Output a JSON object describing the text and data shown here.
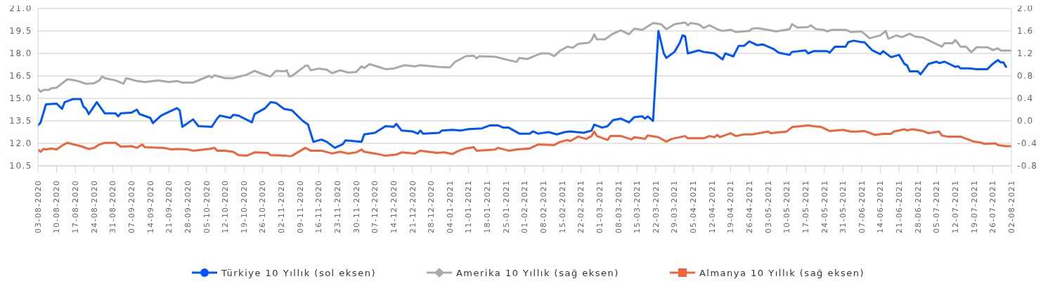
{
  "chart_data": {
    "type": "line",
    "grid": "y",
    "legend": "bottom",
    "xlim": [
      "2020-08-03",
      "2021-08-02"
    ],
    "xticks": [
      {
        "value": "2020-08-03",
        "label": "03-08-2020"
      },
      {
        "value": "2020-08-10",
        "label": "10-08-2020"
      },
      {
        "value": "2020-08-17",
        "label": "17-08-2020"
      },
      {
        "value": "2020-08-24",
        "label": "24-08-2020"
      },
      {
        "value": "2020-08-31",
        "label": "31-08-2020"
      },
      {
        "value": "2020-09-07",
        "label": "07-09-2020"
      },
      {
        "value": "2020-09-14",
        "label": "14-09-2020"
      },
      {
        "value": "2020-09-21",
        "label": "21-09-2020"
      },
      {
        "value": "2020-09-28",
        "label": "28-09-2020"
      },
      {
        "value": "2020-10-05",
        "label": "05-10-2020"
      },
      {
        "value": "2020-10-12",
        "label": "12-10-2020"
      },
      {
        "value": "2020-10-19",
        "label": "19-10-2020"
      },
      {
        "value": "2020-10-26",
        "label": "26-10-2020"
      },
      {
        "value": "2020-11-02",
        "label": "02-11-2020"
      },
      {
        "value": "2020-11-09",
        "label": "09-11-2020"
      },
      {
        "value": "2020-11-16",
        "label": "16-11-2020"
      },
      {
        "value": "2020-11-23",
        "label": "23-11-2020"
      },
      {
        "value": "2020-11-30",
        "label": "30-11-2020"
      },
      {
        "value": "2020-12-07",
        "label": "07-12-2020"
      },
      {
        "value": "2020-12-14",
        "label": "14-12-2020"
      },
      {
        "value": "2020-12-21",
        "label": "21-12-2020"
      },
      {
        "value": "2020-12-28",
        "label": "28-12-2020"
      },
      {
        "value": "2021-01-04",
        "label": "04-01-2021"
      },
      {
        "value": "2021-01-11",
        "label": "11-01-2021"
      },
      {
        "value": "2021-01-18",
        "label": "18-01-2021"
      },
      {
        "value": "2021-01-25",
        "label": "25-01-2021"
      },
      {
        "value": "2021-02-01",
        "label": "01-02-2021"
      },
      {
        "value": "2021-02-08",
        "label": "08-02-2021"
      },
      {
        "value": "2021-02-15",
        "label": "15-02-2021"
      },
      {
        "value": "2021-02-22",
        "label": "22-02-2021"
      },
      {
        "value": "2021-03-01",
        "label": "01-03-2021"
      },
      {
        "value": "2021-03-08",
        "label": "08-03-2021"
      },
      {
        "value": "2021-03-15",
        "label": "15-03-2021"
      },
      {
        "value": "2021-03-22",
        "label": "22-03-2021"
      },
      {
        "value": "2021-03-29",
        "label": "29-03-2021"
      },
      {
        "value": "2021-04-05",
        "label": "05-04-2021"
      },
      {
        "value": "2021-04-12",
        "label": "12-04-2021"
      },
      {
        "value": "2021-04-19",
        "label": "19-04-2021"
      },
      {
        "value": "2021-04-26",
        "label": "26-04-2021"
      },
      {
        "value": "2021-05-03",
        "label": "03-05-2021"
      },
      {
        "value": "2021-05-10",
        "label": "10-05-2021"
      },
      {
        "value": "2021-05-17",
        "label": "17-05-2021"
      },
      {
        "value": "2021-05-24",
        "label": "24-05-2021"
      },
      {
        "value": "2021-05-31",
        "label": "31-05-2021"
      },
      {
        "value": "2021-06-07",
        "label": "07-06-2021"
      },
      {
        "value": "2021-06-14",
        "label": "14-06-2021"
      },
      {
        "value": "2021-06-21",
        "label": "21-06-2021"
      },
      {
        "value": "2021-06-28",
        "label": "28-06-2021"
      },
      {
        "value": "2021-07-05",
        "label": "05-07-2021"
      },
      {
        "value": "2021-07-12",
        "label": "12-07-2021"
      },
      {
        "value": "2021-07-19",
        "label": "19-07-2021"
      },
      {
        "value": "2021-07-26",
        "label": "26-07-2021"
      },
      {
        "value": "2021-08-02",
        "label": "02-08-2021"
      }
    ],
    "ylim": [
      10.5,
      21.0
    ],
    "yticks": [
      {
        "value": 10.5,
        "label": "10.5"
      },
      {
        "value": 12,
        "label": "12.0"
      },
      {
        "value": 13.5,
        "label": "13.5"
      },
      {
        "value": 15,
        "label": "15.0"
      },
      {
        "value": 16.5,
        "label": "16.5"
      },
      {
        "value": 18,
        "label": "18.0"
      },
      {
        "value": 19.5,
        "label": "19.5"
      },
      {
        "value": 21,
        "label": "21.0"
      }
    ],
    "y2lim": [
      -0.8,
      2.0
    ],
    "y2ticks": [
      {
        "value": -0.8,
        "label": "-0.8"
      },
      {
        "value": -0.4,
        "label": "-0.4"
      },
      {
        "value": 0,
        "label": "0.0"
      },
      {
        "value": 0.4,
        "label": "0.4"
      },
      {
        "value": 0.8,
        "label": "0.8"
      },
      {
        "value": 1.2,
        "label": "1.2"
      },
      {
        "value": 1.6,
        "label": "1.6"
      },
      {
        "value": 2,
        "label": "2.0"
      }
    ],
    "series": [
      {
        "name": "Türkiye 10 Yıllık (sol eksen)",
        "color": "#0055ff",
        "x": [
          "2020-08-03",
          "2020-08-04",
          "2020-08-06",
          "2020-08-10",
          "2020-08-12",
          "2020-08-13",
          "2020-08-16",
          "2020-08-19",
          "2020-08-20",
          "2020-08-21",
          "2020-08-22",
          "2020-08-25",
          "2020-08-28",
          "2020-09-01",
          "2020-09-02",
          "2020-09-03",
          "2020-09-07",
          "2020-09-09",
          "2020-09-10",
          "2020-09-14",
          "2020-09-15",
          "2020-09-18",
          "2020-09-21",
          "2020-09-24",
          "2020-09-25",
          "2020-09-26",
          "2020-09-30",
          "2020-10-02",
          "2020-10-07",
          "2020-10-09",
          "2020-10-10",
          "2020-10-14",
          "2020-10-15",
          "2020-10-17",
          "2020-10-22",
          "2020-10-23",
          "2020-10-27",
          "2020-10-29",
          "2020-10-31",
          "2020-11-03",
          "2020-11-06",
          "2020-11-10",
          "2020-11-12",
          "2020-11-14",
          "2020-11-17",
          "2020-11-19",
          "2020-11-22",
          "2020-11-25",
          "2020-11-26",
          "2020-11-29",
          "2020-12-02",
          "2020-12-03",
          "2020-12-07",
          "2020-12-11",
          "2020-12-14",
          "2020-12-15",
          "2020-12-17",
          "2020-12-21",
          "2020-12-23",
          "2020-12-24",
          "2020-12-25",
          "2020-12-31",
          "2021-01-01",
          "2021-01-05",
          "2021-01-08",
          "2021-01-11",
          "2021-01-16",
          "2021-01-19",
          "2021-01-22",
          "2021-01-24",
          "2021-01-26",
          "2021-01-30",
          "2021-02-03",
          "2021-02-04",
          "2021-02-06",
          "2021-02-10",
          "2021-02-13",
          "2021-02-16",
          "2021-02-18",
          "2021-02-23",
          "2021-02-26",
          "2021-02-27",
          "2021-03-02",
          "2021-03-04",
          "2021-03-06",
          "2021-03-09",
          "2021-03-12",
          "2021-03-14",
          "2021-03-17",
          "2021-03-18",
          "2021-03-19",
          "2021-03-21",
          "2021-03-23",
          "2021-03-25",
          "2021-03-26",
          "2021-03-29",
          "2021-03-31",
          "2021-04-01",
          "2021-04-02",
          "2021-04-03",
          "2021-04-07",
          "2021-04-09",
          "2021-04-13",
          "2021-04-16",
          "2021-04-17",
          "2021-04-20",
          "2021-04-22",
          "2021-04-24",
          "2021-04-26",
          "2021-04-29",
          "2021-05-01",
          "2021-05-05",
          "2021-05-07",
          "2021-05-11",
          "2021-05-12",
          "2021-05-17",
          "2021-05-18",
          "2021-05-20",
          "2021-05-25",
          "2021-05-26",
          "2021-05-28",
          "2021-06-01",
          "2021-06-02",
          "2021-06-04",
          "2021-06-07",
          "2021-06-08",
          "2021-06-11",
          "2021-06-14",
          "2021-06-15",
          "2021-06-18",
          "2021-06-21",
          "2021-06-23",
          "2021-06-24",
          "2021-06-25",
          "2021-06-28",
          "2021-06-29",
          "2021-07-02",
          "2021-07-05",
          "2021-07-06",
          "2021-07-08",
          "2021-07-12",
          "2021-07-13",
          "2021-07-14",
          "2021-07-17",
          "2021-07-20",
          "2021-07-24",
          "2021-07-26",
          "2021-07-28",
          "2021-07-29",
          "2021-07-30",
          "2021-07-31"
        ],
        "values": [
          13.2,
          13.4,
          14.6,
          14.65,
          14.3,
          14.75,
          14.95,
          14.95,
          14.45,
          14.3,
          13.95,
          14.75,
          14.0,
          14.0,
          13.8,
          14.0,
          14.05,
          14.25,
          13.95,
          13.7,
          13.35,
          13.85,
          14.1,
          14.35,
          14.2,
          13.1,
          13.6,
          13.15,
          13.1,
          13.65,
          13.85,
          13.7,
          13.9,
          13.85,
          13.4,
          13.95,
          14.35,
          14.75,
          14.7,
          14.3,
          14.2,
          13.5,
          13.25,
          12.1,
          12.25,
          12.1,
          11.7,
          11.95,
          12.2,
          12.15,
          12.1,
          12.6,
          12.7,
          13.15,
          13.1,
          13.3,
          12.85,
          12.8,
          12.65,
          12.85,
          12.65,
          12.7,
          12.85,
          12.9,
          12.85,
          12.95,
          13.0,
          13.2,
          13.2,
          13.05,
          13.05,
          12.65,
          12.65,
          12.8,
          12.65,
          12.75,
          12.6,
          12.75,
          12.8,
          12.7,
          12.85,
          13.25,
          13.05,
          13.15,
          13.55,
          13.65,
          13.4,
          13.75,
          13.8,
          13.65,
          13.8,
          13.5,
          19.5,
          18.0,
          17.7,
          18.1,
          18.7,
          19.2,
          19.15,
          18.0,
          18.2,
          18.1,
          18.0,
          17.6,
          18.0,
          17.8,
          18.5,
          18.5,
          18.8,
          18.55,
          18.6,
          18.3,
          18.05,
          17.9,
          18.1,
          18.2,
          18.0,
          18.15,
          18.15,
          18.05,
          18.45,
          18.45,
          18.75,
          18.85,
          18.75,
          18.75,
          18.2,
          17.95,
          18.15,
          17.75,
          17.9,
          17.3,
          17.2,
          16.8,
          16.8,
          16.6,
          17.3,
          17.45,
          17.35,
          17.45,
          17.1,
          17.15,
          17.0,
          17.0,
          16.95,
          16.95,
          17.3,
          17.55,
          17.4,
          17.4,
          17.1
        ]
      },
      {
        "name": "Amerika 10 Yıllık (sağ eksen)",
        "color": "#aaaaaa",
        "axis": "y2",
        "x": [
          "2020-08-03",
          "2020-08-04",
          "2020-08-05",
          "2020-08-07",
          "2020-08-08",
          "2020-08-10",
          "2020-08-14",
          "2020-08-17",
          "2020-08-19",
          "2020-08-21",
          "2020-08-24",
          "2020-08-26",
          "2020-08-27",
          "2020-08-28",
          "2020-09-01",
          "2020-09-04",
          "2020-09-05",
          "2020-09-09",
          "2020-09-12",
          "2020-09-17",
          "2020-09-21",
          "2020-09-24",
          "2020-09-26",
          "2020-09-30",
          "2020-10-01",
          "2020-10-06",
          "2020-10-07",
          "2020-10-08",
          "2020-10-12",
          "2020-10-15",
          "2020-10-20",
          "2020-10-23",
          "2020-10-25",
          "2020-10-28",
          "2020-10-29",
          "2020-10-31",
          "2020-11-03",
          "2020-11-04",
          "2020-11-05",
          "2020-11-06",
          "2020-11-11",
          "2020-11-12",
          "2020-11-13",
          "2020-11-16",
          "2020-11-19",
          "2020-11-21",
          "2020-11-24",
          "2020-11-27",
          "2020-11-30",
          "2020-12-02",
          "2020-12-03",
          "2020-12-05",
          "2020-12-09",
          "2020-12-11",
          "2020-12-14",
          "2020-12-18",
          "2020-12-22",
          "2020-12-24",
          "2020-12-31",
          "2021-01-04",
          "2021-01-06",
          "2021-01-10",
          "2021-01-13",
          "2021-01-14",
          "2021-01-15",
          "2021-01-21",
          "2021-01-26",
          "2021-01-29",
          "2021-01-30",
          "2021-02-02",
          "2021-02-05",
          "2021-02-07",
          "2021-02-10",
          "2021-02-12",
          "2021-02-14",
          "2021-02-17",
          "2021-02-19",
          "2021-02-21",
          "2021-02-25",
          "2021-02-26",
          "2021-02-27",
          "2021-02-28",
          "2021-03-03",
          "2021-03-06",
          "2021-03-09",
          "2021-03-12",
          "2021-03-14",
          "2021-03-17",
          "2021-03-21",
          "2021-03-24",
          "2021-03-26",
          "2021-03-29",
          "2021-04-02",
          "2021-04-03",
          "2021-04-04",
          "2021-04-07",
          "2021-04-09",
          "2021-04-11",
          "2021-04-12",
          "2021-04-14",
          "2021-04-16",
          "2021-04-19",
          "2021-04-21",
          "2021-04-26",
          "2021-04-27",
          "2021-04-29",
          "2021-05-03",
          "2021-05-06",
          "2021-05-11",
          "2021-05-12",
          "2021-05-14",
          "2021-05-18",
          "2021-05-19",
          "2021-05-21",
          "2021-05-24",
          "2021-05-25",
          "2021-05-27",
          "2021-06-01",
          "2021-06-03",
          "2021-06-07",
          "2021-06-10",
          "2021-06-14",
          "2021-06-16",
          "2021-06-17",
          "2021-06-20",
          "2021-06-22",
          "2021-06-25",
          "2021-06-27",
          "2021-06-30",
          "2021-07-07",
          "2021-07-08",
          "2021-07-11",
          "2021-07-12",
          "2021-07-14",
          "2021-07-16",
          "2021-07-18",
          "2021-07-20",
          "2021-07-24",
          "2021-07-26",
          "2021-07-28",
          "2021-07-29",
          "2021-08-02"
        ],
        "values": [
          0.57,
          0.52,
          0.55,
          0.55,
          0.58,
          0.59,
          0.74,
          0.72,
          0.69,
          0.66,
          0.67,
          0.72,
          0.79,
          0.76,
          0.72,
          0.66,
          0.76,
          0.71,
          0.69,
          0.72,
          0.69,
          0.71,
          0.68,
          0.68,
          0.7,
          0.8,
          0.77,
          0.81,
          0.76,
          0.76,
          0.82,
          0.89,
          0.85,
          0.8,
          0.79,
          0.89,
          0.88,
          0.9,
          0.79,
          0.8,
          0.98,
          0.98,
          0.9,
          0.93,
          0.91,
          0.85,
          0.9,
          0.86,
          0.87,
          0.97,
          0.94,
          1.01,
          0.95,
          0.92,
          0.93,
          0.99,
          0.97,
          0.99,
          0.96,
          0.95,
          1.05,
          1.15,
          1.16,
          1.11,
          1.15,
          1.14,
          1.08,
          1.05,
          1.12,
          1.1,
          1.16,
          1.2,
          1.2,
          1.15,
          1.24,
          1.32,
          1.3,
          1.37,
          1.39,
          1.44,
          1.54,
          1.45,
          1.45,
          1.55,
          1.61,
          1.54,
          1.64,
          1.62,
          1.74,
          1.72,
          1.63,
          1.72,
          1.75,
          1.7,
          1.74,
          1.72,
          1.65,
          1.7,
          1.68,
          1.63,
          1.6,
          1.62,
          1.58,
          1.6,
          1.64,
          1.65,
          1.62,
          1.59,
          1.63,
          1.72,
          1.66,
          1.67,
          1.7,
          1.63,
          1.62,
          1.59,
          1.62,
          1.62,
          1.58,
          1.59,
          1.47,
          1.52,
          1.6,
          1.46,
          1.52,
          1.49,
          1.55,
          1.5,
          1.48,
          1.32,
          1.38,
          1.38,
          1.44,
          1.32,
          1.32,
          1.22,
          1.31,
          1.31,
          1.26,
          1.29,
          1.25,
          1.25
        ]
      },
      {
        "name": "Almanya 10 Yıllık (sağ eksen)",
        "color": "#f0643c",
        "axis": "y2",
        "x": [
          "2020-08-03",
          "2020-08-04",
          "2020-08-05",
          "2020-08-06",
          "2020-08-08",
          "2020-08-10",
          "2020-08-12",
          "2020-08-14",
          "2020-08-19",
          "2020-08-22",
          "2020-08-24",
          "2020-08-26",
          "2020-08-28",
          "2020-09-01",
          "2020-09-03",
          "2020-09-07",
          "2020-09-09",
          "2020-09-11",
          "2020-09-12",
          "2020-09-19",
          "2020-09-22",
          "2020-09-24",
          "2020-09-28",
          "2020-09-30",
          "2020-10-06",
          "2020-10-08",
          "2020-10-09",
          "2020-10-12",
          "2020-10-15",
          "2020-10-17",
          "2020-10-20",
          "2020-10-23",
          "2020-10-28",
          "2020-10-29",
          "2020-11-04",
          "2020-11-05",
          "2020-11-06",
          "2020-11-11",
          "2020-11-13",
          "2020-11-17",
          "2020-11-21",
          "2020-11-24",
          "2020-11-27",
          "2020-11-30",
          "2020-12-02",
          "2020-12-03",
          "2020-12-07",
          "2020-12-11",
          "2020-12-15",
          "2020-12-17",
          "2020-12-22",
          "2020-12-24",
          "2020-12-30",
          "2021-01-02",
          "2021-01-05",
          "2021-01-07",
          "2021-01-10",
          "2021-01-13",
          "2021-01-14",
          "2021-01-21",
          "2021-01-22",
          "2021-01-26",
          "2021-01-29",
          "2021-02-03",
          "2021-02-06",
          "2021-02-12",
          "2021-02-14",
          "2021-02-17",
          "2021-02-18",
          "2021-02-21",
          "2021-02-24",
          "2021-02-26",
          "2021-02-27",
          "2021-02-28",
          "2021-03-04",
          "2021-03-05",
          "2021-03-09",
          "2021-03-13",
          "2021-03-14",
          "2021-03-18",
          "2021-03-19",
          "2021-03-23",
          "2021-03-26",
          "2021-03-28",
          "2021-04-02",
          "2021-04-03",
          "2021-04-09",
          "2021-04-11",
          "2021-04-13",
          "2021-04-14",
          "2021-04-15",
          "2021-04-19",
          "2021-04-21",
          "2021-04-24",
          "2021-04-27",
          "2021-05-03",
          "2021-05-04",
          "2021-05-10",
          "2021-05-12",
          "2021-05-18",
          "2021-05-21",
          "2021-05-23",
          "2021-05-26",
          "2021-05-31",
          "2021-06-03",
          "2021-06-05",
          "2021-06-08",
          "2021-06-12",
          "2021-06-15",
          "2021-06-18",
          "2021-06-19",
          "2021-06-23",
          "2021-06-24",
          "2021-06-26",
          "2021-06-30",
          "2021-07-02",
          "2021-07-06",
          "2021-07-07",
          "2021-07-09",
          "2021-07-14",
          "2021-07-19",
          "2021-07-21",
          "2021-07-23",
          "2021-07-27",
          "2021-07-28",
          "2021-07-31",
          "2021-08-02"
        ],
        "values": [
          -0.51,
          -0.55,
          -0.5,
          -0.51,
          -0.49,
          -0.51,
          -0.44,
          -0.39,
          -0.45,
          -0.5,
          -0.48,
          -0.42,
          -0.39,
          -0.39,
          -0.46,
          -0.45,
          -0.48,
          -0.42,
          -0.47,
          -0.48,
          -0.51,
          -0.5,
          -0.51,
          -0.53,
          -0.5,
          -0.48,
          -0.53,
          -0.53,
          -0.55,
          -0.61,
          -0.62,
          -0.56,
          -0.57,
          -0.61,
          -0.62,
          -0.63,
          -0.62,
          -0.48,
          -0.53,
          -0.53,
          -0.58,
          -0.55,
          -0.58,
          -0.56,
          -0.51,
          -0.55,
          -0.58,
          -0.62,
          -0.6,
          -0.56,
          -0.58,
          -0.53,
          -0.57,
          -0.56,
          -0.59,
          -0.54,
          -0.49,
          -0.47,
          -0.53,
          -0.51,
          -0.48,
          -0.53,
          -0.51,
          -0.49,
          -0.42,
          -0.43,
          -0.38,
          -0.34,
          -0.36,
          -0.28,
          -0.32,
          -0.27,
          -0.19,
          -0.27,
          -0.34,
          -0.27,
          -0.27,
          -0.33,
          -0.29,
          -0.32,
          -0.26,
          -0.29,
          -0.37,
          -0.32,
          -0.27,
          -0.31,
          -0.31,
          -0.27,
          -0.29,
          -0.25,
          -0.29,
          -0.22,
          -0.27,
          -0.24,
          -0.24,
          -0.19,
          -0.22,
          -0.19,
          -0.11,
          -0.08,
          -0.1,
          -0.11,
          -0.18,
          -0.16,
          -0.19,
          -0.19,
          -0.18,
          -0.25,
          -0.23,
          -0.23,
          -0.19,
          -0.15,
          -0.17,
          -0.15,
          -0.18,
          -0.22,
          -0.19,
          -0.26,
          -0.28,
          -0.28,
          -0.37,
          -0.38,
          -0.41,
          -0.4,
          -0.43,
          -0.45,
          -0.45
        ]
      }
    ]
  }
}
